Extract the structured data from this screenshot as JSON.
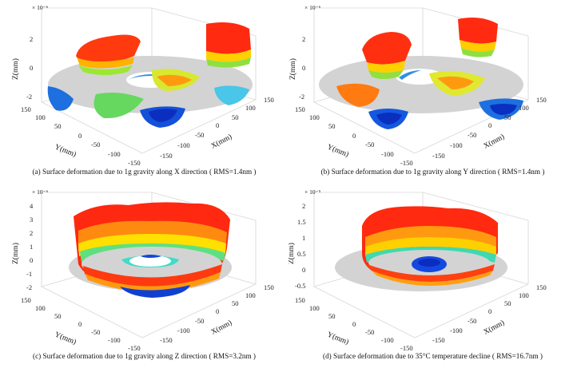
{
  "figure": {
    "panels": [
      {
        "caption": "(a)  Surface deformation due to 1g gravity along X direction ( RMS=1.4nm )",
        "zscale": "× 10⁻⁶",
        "zlabel": "Z(mm)",
        "ylabel": "Y(mm)",
        "xlabel": "X(mm)",
        "zticks": [
          "2",
          "0",
          "-2"
        ],
        "yticks": [
          "150",
          "100",
          "50",
          "0",
          "-50",
          "-100",
          "-150"
        ],
        "xticks": [
          "150",
          "100",
          "50",
          "0",
          "-50",
          "-100",
          "-150"
        ],
        "zmax": 2
      },
      {
        "caption": "(b)  Surface deformation due to 1g gravity along Y direction ( RMS=1.4nm )",
        "zscale": "× 10⁻⁶",
        "zlabel": "Z(mm)",
        "ylabel": "Y(mm)",
        "xlabel": "X(mm)",
        "zticks": [
          "2",
          "0",
          "-2"
        ],
        "yticks": [
          "150",
          "100",
          "50",
          "0",
          "-50",
          "-100",
          "-150"
        ],
        "xticks": [
          "150",
          "100",
          "50",
          "0",
          "-50",
          "-100",
          "-150"
        ],
        "zmax": 2
      },
      {
        "caption": "(c)  Surface deformation due to 1g gravity along Z direction ( RMS=3.2nm )",
        "zscale": "× 10⁻⁶",
        "zlabel": "Z(mm)",
        "ylabel": "Y(mm)",
        "xlabel": "X(mm)",
        "zticks": [
          "4",
          "3",
          "2",
          "1",
          "0",
          "-1",
          "-2"
        ],
        "yticks": [
          "150",
          "100",
          "50",
          "0",
          "-50",
          "-100",
          "-150"
        ],
        "xticks": [
          "150",
          "100",
          "50",
          "0",
          "-50",
          "-100",
          "-150"
        ],
        "zmax": 4
      },
      {
        "caption": "(d) Surface deformation due to 35°C temperature decline ( RMS=16.7nm )",
        "zscale": "× 10⁻⁵",
        "zlabel": "Z(mm)",
        "ylabel": "Y(mm)",
        "xlabel": "X(mm)",
        "zticks": [
          "2",
          "1.5",
          "1",
          "0.5",
          "0",
          "-0.5"
        ],
        "yticks": [
          "150",
          "100",
          "50",
          "0",
          "-50",
          "-100",
          "-150"
        ],
        "xticks": [
          "150",
          "100",
          "50",
          "0",
          "-50",
          "-100",
          "-150"
        ],
        "zmax": 2
      }
    ]
  }
}
